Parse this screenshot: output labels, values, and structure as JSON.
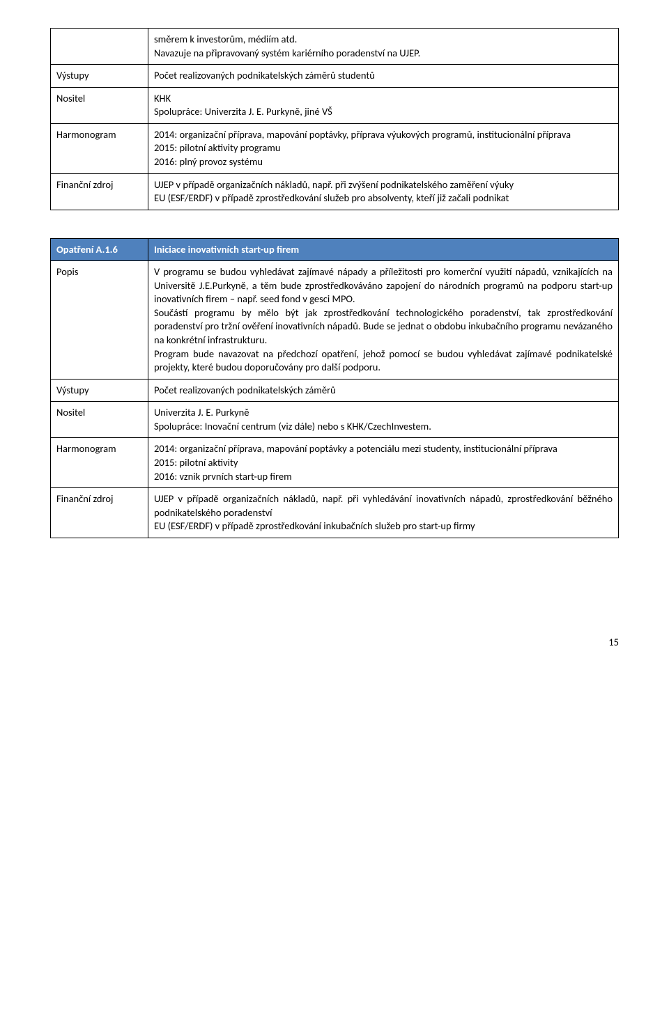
{
  "table1": {
    "rows": [
      {
        "label": "",
        "content": "směrem k investorům, médiím atd.\nNavazuje na připravovaný systém kariérního poradenství na UJEP."
      },
      {
        "label": "Výstupy",
        "content": "Počet realizovaných podnikatelských záměrů studentů"
      },
      {
        "label": "Nositel",
        "content": "KHK\nSpolupráce: Univerzita J. E. Purkyně, jiné VŠ"
      },
      {
        "label": "Harmonogram",
        "content": "2014: organizační příprava, mapování poptávky, příprava výukových programů, institucionální příprava\n2015: pilotní aktivity programu\n2016: plný provoz systému"
      },
      {
        "label": "Finanční zdroj",
        "content": "UJEP v případě organizačních nákladů, např. při zvýšení podnikatelského zaměření výuky\n EU (ESF/ERDF) v případě zprostředkování služeb pro absolventy, kteří již začali podnikat"
      }
    ]
  },
  "table2": {
    "header": {
      "code": "Opatření A.1.6",
      "title": "Iniciace inovativních start-up firem"
    },
    "rows": [
      {
        "label": "Popis",
        "content": "V programu se budou vyhledávat zajímavé nápady a příležitosti pro komerční využití nápadů, vznikajících na Universitě J.E.Purkyně, a těm bude zprostředkováváno zapojení do národních programů na podporu start-up inovativních firem – např. seed fond v gesci MPO.\nSoučástí programu by mělo být jak zprostředkování technologického poradenství, tak zprostředkování poradenství pro tržní ověření inovativních nápadů. Bude se jednat o obdobu inkubačního programu nevázaného na konkrétní infrastrukturu.\nProgram bude navazovat na předchozí opatření, jehož pomocí se budou vyhledávat zajímavé podnikatelské projekty, které budou doporučovány pro další podporu."
      },
      {
        "label": "Výstupy",
        "content": "Počet realizovaných podnikatelských záměrů"
      },
      {
        "label": "Nositel",
        "content": "Univerzita J. E. Purkyně\nSpolupráce: Inovační centrum (viz dále) nebo s  KHK/CzechInvestem."
      },
      {
        "label": "Harmonogram",
        "content": "2014: organizační příprava, mapování poptávky a potenciálu mezi studenty, institucionální příprava\n2015: pilotní aktivity\n2016: vznik prvních start-up firem"
      },
      {
        "label": "Finanční zdroj",
        "content": "UJEP v případě organizačních nákladů, např. při vyhledávání inovativních nápadů, zprostředkování běžného podnikatelského poradenství\n EU (ESF/ERDF) v případě zprostředkování inkubačních služeb pro start-up firmy"
      }
    ]
  },
  "page_number": "15"
}
